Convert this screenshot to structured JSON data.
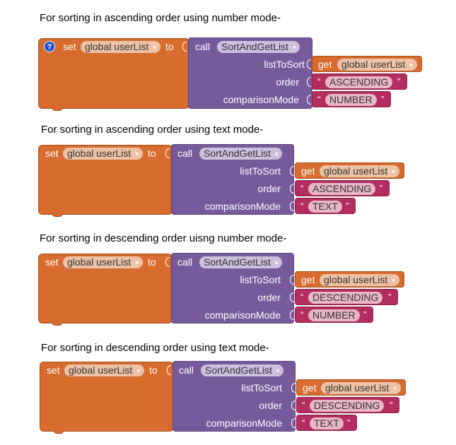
{
  "sections": [
    {
      "title": "For sorting in ascending order using number mode-",
      "has_help": true,
      "set_label": "set",
      "variable": "global userList",
      "to_label": "to",
      "call_label": "call",
      "procedure": "SortAndGetList",
      "param1_label": "listToSort",
      "param2_label": "order",
      "param3_label": "comparisonMode",
      "get_label": "get",
      "get_variable": "global userList",
      "order_value": "ASCENDING",
      "mode_value": "NUMBER"
    },
    {
      "title": "For sorting in ascending order using text mode-",
      "has_help": false,
      "set_label": "set",
      "variable": "global userList",
      "to_label": "to",
      "call_label": "call",
      "procedure": "SortAndGetList",
      "param1_label": "listToSort",
      "param2_label": "order",
      "param3_label": "comparisonMode",
      "get_label": "get",
      "get_variable": "global userList",
      "order_value": "ASCENDING",
      "mode_value": "TEXT"
    },
    {
      "title": "For sorting in descending order uisng number mode-",
      "has_help": false,
      "set_label": "set",
      "variable": "global userList",
      "to_label": "to",
      "call_label": "call",
      "procedure": "SortAndGetList",
      "param1_label": "listToSort",
      "param2_label": "order",
      "param3_label": "comparisonMode",
      "get_label": "get",
      "get_variable": "global userList",
      "order_value": "DESCENDING",
      "mode_value": "NUMBER"
    },
    {
      "title": "For sorting in descending order using text mode-",
      "has_help": false,
      "set_label": "set",
      "variable": "global userList",
      "to_label": "to",
      "call_label": "call",
      "procedure": "SortAndGetList",
      "param1_label": "listToSort",
      "param2_label": "order",
      "param3_label": "comparisonMode",
      "get_label": "get",
      "get_variable": "global userList",
      "order_value": "DESCENDING",
      "mode_value": "TEXT"
    }
  ],
  "help_icon_glyph": "?",
  "dropdown_glyph": "▾",
  "open_quote": "“",
  "close_quote": "”",
  "colors": {
    "variable_block": "#D86B2E",
    "procedure_block": "#775A9C",
    "text_block": "#B32D5E",
    "help_icon": "#1b4fd1"
  }
}
